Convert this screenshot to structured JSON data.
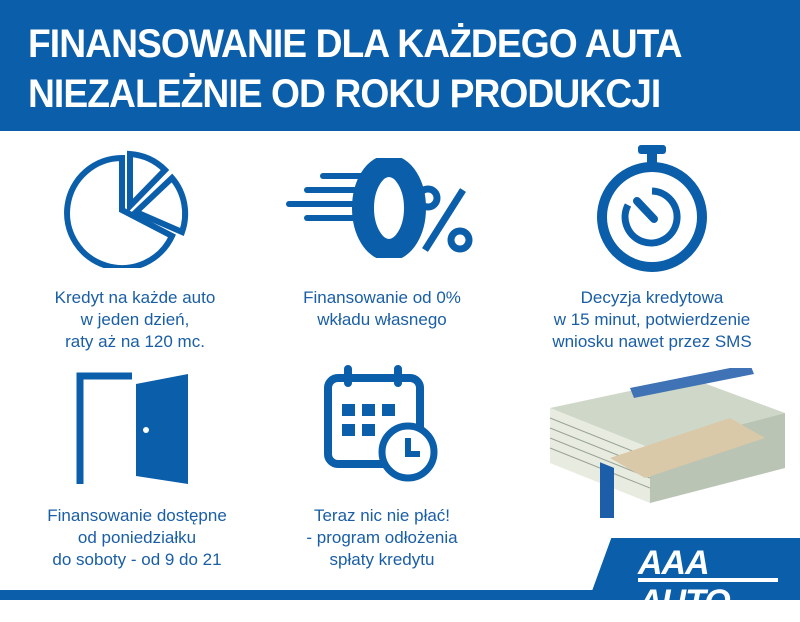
{
  "header": {
    "line1": "FINANSOWANIE DLA KAŻDEGO AUTA",
    "line2": "NIEZALEŻNIE OD ROKU PRODUKCJI"
  },
  "features": [
    {
      "icon": "pie-chart-icon",
      "lines": [
        "Kredyt na każde auto",
        "w jeden dzień,",
        "raty aż na 120 mc."
      ]
    },
    {
      "icon": "zero-percent-icon",
      "lines": [
        "Finansowanie od 0%",
        "wkładu własnego"
      ]
    },
    {
      "icon": "stopwatch-icon",
      "lines": [
        "Decyzja kredytowa",
        "w 15 minut, potwierdzenie",
        "wniosku nawet przez SMS"
      ]
    },
    {
      "icon": "open-door-icon",
      "lines": [
        "Finansowanie dostępne",
        "od poniedziałku",
        "do soboty - od 9 do 21"
      ]
    },
    {
      "icon": "calendar-clock-icon",
      "lines": [
        "Teraz nic nie płać!",
        "- program odłożenia",
        "spłaty kredytu"
      ]
    }
  ],
  "logo": {
    "text": "AAA AUTO"
  },
  "colors": {
    "brand_blue": "#0b5ea9",
    "text_blue": "#1a5ea5"
  }
}
